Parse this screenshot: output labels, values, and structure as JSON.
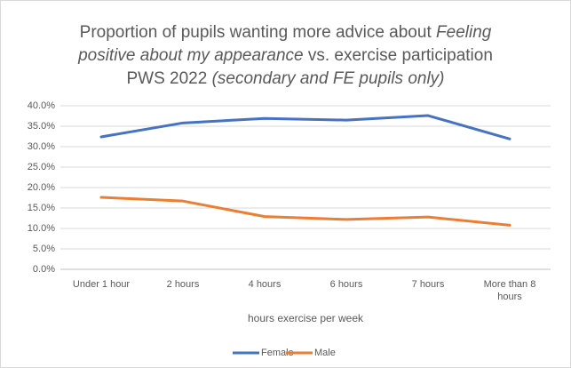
{
  "chart_data": {
    "type": "line",
    "title": [
      [
        {
          "text": "Proportion of pupils wanting more advice about",
          "italic": false
        },
        {
          "text": "Feeling",
          "italic": true
        }
      ],
      [
        {
          "text": "positive about my appearance",
          "italic": true
        },
        {
          "text": "vs. exercise participation",
          "italic": false
        }
      ],
      [
        {
          "text": "PWS 2022",
          "italic": false
        },
        {
          "text": "(secondary and FE pupils only)",
          "italic": true
        }
      ]
    ],
    "x_label": "hours exercise per week",
    "categories": [
      "Under 1 hour",
      "2 hours",
      "4 hours",
      "6 hours",
      "7 hours",
      "More than 8 hours"
    ],
    "series": [
      {
        "name": "Female",
        "color": "#4472c4",
        "values": [
          32.4,
          35.8,
          36.9,
          36.5,
          37.6,
          31.9
        ]
      },
      {
        "name": "Male",
        "color": "#ed7d31",
        "values": [
          17.6,
          16.7,
          12.9,
          12.2,
          12.8,
          10.8
        ]
      }
    ],
    "ylim": [
      0,
      40
    ],
    "yticks": [
      {
        "value": 0,
        "label": "0.0%"
      },
      {
        "value": 5,
        "label": "5.0%"
      },
      {
        "value": 10,
        "label": "10.0%"
      },
      {
        "value": 15,
        "label": "15.0%"
      },
      {
        "value": 20,
        "label": "20.0%"
      },
      {
        "value": 25,
        "label": "25.0%"
      },
      {
        "value": 30,
        "label": "30.0%"
      },
      {
        "value": 35,
        "label": "35.0%"
      },
      {
        "value": 40,
        "label": "40.0%"
      }
    ],
    "grid": true,
    "legend": "bottom"
  }
}
